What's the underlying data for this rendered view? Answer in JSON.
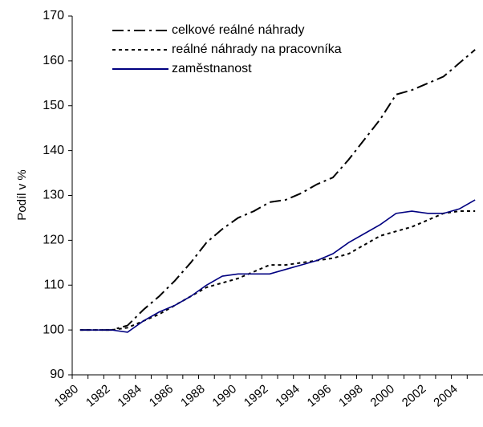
{
  "chart_data": {
    "type": "line",
    "y_label": "Podíl v %",
    "categories": [
      "1980",
      null,
      "1982",
      null,
      "1984",
      null,
      "1986",
      null,
      "1988",
      null,
      "1990",
      null,
      "1992",
      null,
      "1994",
      null,
      "1996",
      null,
      "1998",
      null,
      "2000",
      null,
      "2002",
      null,
      "2004",
      null
    ],
    "series": [
      {
        "name": "celkové reálné náhrady",
        "color": "#000000",
        "dash": "dash-dot",
        "values": [
          100,
          100,
          100,
          101,
          104.5,
          107.5,
          111,
          115,
          119.5,
          122.5,
          125,
          126.5,
          128.5,
          129,
          130.5,
          132.5,
          134,
          138,
          142.5,
          147,
          152.5,
          153.5,
          155,
          156.5,
          159.5,
          162.5
        ]
      },
      {
        "name": "reálné náhrady na pracovníka",
        "color": "#000000",
        "dash": "dotted",
        "values": [
          100,
          100,
          100,
          100.5,
          102,
          103.5,
          105.5,
          107.5,
          109.5,
          110.5,
          111.5,
          113,
          114.5,
          114.5,
          115,
          115.5,
          116,
          117,
          119,
          121,
          122,
          123,
          124.5,
          126,
          126.5,
          126.5
        ]
      },
      {
        "name": "zaměstnanost",
        "color": "#000080",
        "dash": "solid",
        "values": [
          100,
          100,
          100,
          99.5,
          102,
          104,
          105.5,
          107.5,
          110,
          112,
          112.5,
          112.5,
          112.5,
          113.5,
          114.5,
          115.5,
          117,
          119.5,
          121.5,
          123.5,
          126,
          126.5,
          126,
          126,
          127,
          129
        ]
      }
    ],
    "ylim": [
      90,
      170
    ],
    "yticks": [
      90,
      100,
      110,
      120,
      130,
      140,
      150,
      160,
      170
    ],
    "legend": "upper-left"
  }
}
